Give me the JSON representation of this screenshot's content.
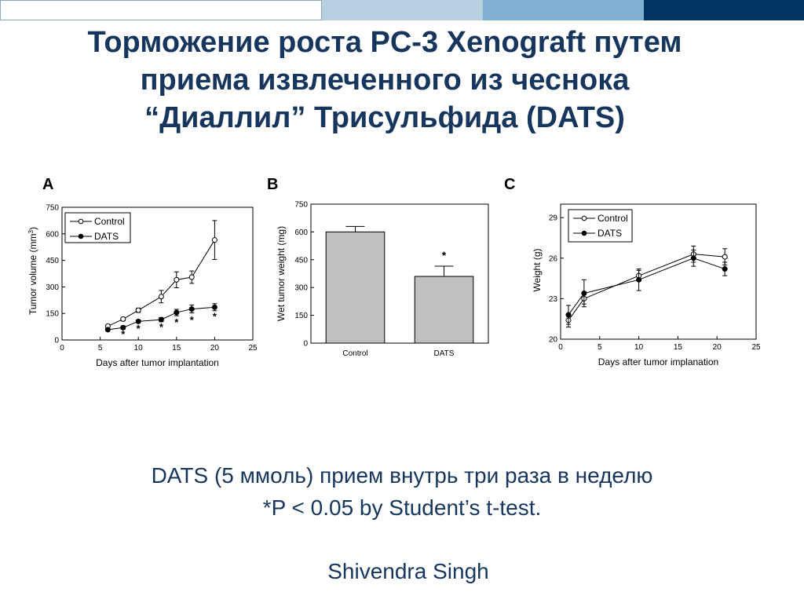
{
  "colors": {
    "title": "#17365d",
    "bar1": "#ffffff",
    "bar2": "#b8cfe0",
    "bar3": "#7fafd1",
    "bar4": "#003562",
    "bar_fill": "#c0c0c0"
  },
  "slide": {
    "title_lines": [
      "Торможение роста PC-3 Xenograft путем",
      "приема извлеченного из чеснока",
      "“Диаллил” Трисульфида (DATS)"
    ],
    "caption_line1": "DATS (5 ммоль) прием внутрь три раза в неделю",
    "caption_line2": "*P < 0.05 by Student’s t-test.",
    "author": "Shivendra Singh"
  },
  "chart_data": [
    {
      "panel": "A",
      "type": "line",
      "xlabel": "Days after tumor implantation",
      "ylabel": "Tumor volume (mm",
      "ylabel_sup": "3",
      "ylabel_end": ")",
      "xlim": [
        0,
        25
      ],
      "ylim": [
        0,
        750
      ],
      "xticks": [
        0,
        5,
        10,
        15,
        20,
        25
      ],
      "yticks": [
        0,
        150,
        300,
        450,
        600,
        750
      ],
      "legend": "top-left",
      "series": [
        {
          "name": "Control",
          "marker": "open",
          "x": [
            6,
            8,
            10,
            13,
            15,
            17,
            20
          ],
          "y": [
            78,
            118,
            168,
            245,
            340,
            355,
            565
          ],
          "err": [
            8,
            10,
            12,
            35,
            45,
            35,
            110
          ]
        },
        {
          "name": "DATS",
          "marker": "filled",
          "x": [
            6,
            8,
            10,
            13,
            15,
            17,
            20
          ],
          "y": [
            58,
            70,
            105,
            115,
            155,
            175,
            185
          ],
          "err": [
            6,
            10,
            8,
            12,
            18,
            22,
            20
          ]
        }
      ],
      "significance": [
        {
          "x": 8,
          "y": 32,
          "label": "*"
        },
        {
          "x": 10,
          "y": 62,
          "label": "*"
        },
        {
          "x": 13,
          "y": 70,
          "label": "*"
        },
        {
          "x": 15,
          "y": 98,
          "label": "*"
        },
        {
          "x": 17,
          "y": 112,
          "label": "*"
        },
        {
          "x": 20,
          "y": 130,
          "label": "*"
        }
      ]
    },
    {
      "panel": "B",
      "type": "bar",
      "ylabel": "Wet tumor weight (mg)",
      "ylim": [
        0,
        750
      ],
      "yticks": [
        0,
        150,
        300,
        450,
        600,
        750
      ],
      "categories": [
        "Control",
        "DATS"
      ],
      "values": [
        600,
        360
      ],
      "err": [
        30,
        55
      ],
      "significance": [
        {
          "category": "DATS",
          "label": "*"
        }
      ]
    },
    {
      "panel": "C",
      "type": "line",
      "xlabel": "Days after tumor implanation",
      "ylabel": "Weight (g)",
      "xlim": [
        0,
        25
      ],
      "ylim": [
        20,
        30
      ],
      "xticks": [
        0,
        5,
        10,
        15,
        20,
        25
      ],
      "yticks": [
        20,
        23,
        26,
        29
      ],
      "legend": "top-left",
      "series": [
        {
          "name": "Control",
          "marker": "open",
          "x": [
            1,
            3,
            10,
            17,
            21
          ],
          "y": [
            21.4,
            23.0,
            24.7,
            26.3,
            26.1
          ],
          "err": [
            0.5,
            0.4,
            0.4,
            0.6,
            0.6
          ]
        },
        {
          "name": "DATS",
          "marker": "filled",
          "x": [
            1,
            3,
            10,
            17,
            21
          ],
          "y": [
            21.8,
            23.4,
            24.4,
            26.0,
            25.2
          ],
          "err": [
            0.7,
            1.0,
            0.8,
            0.6,
            0.5
          ]
        }
      ]
    }
  ]
}
